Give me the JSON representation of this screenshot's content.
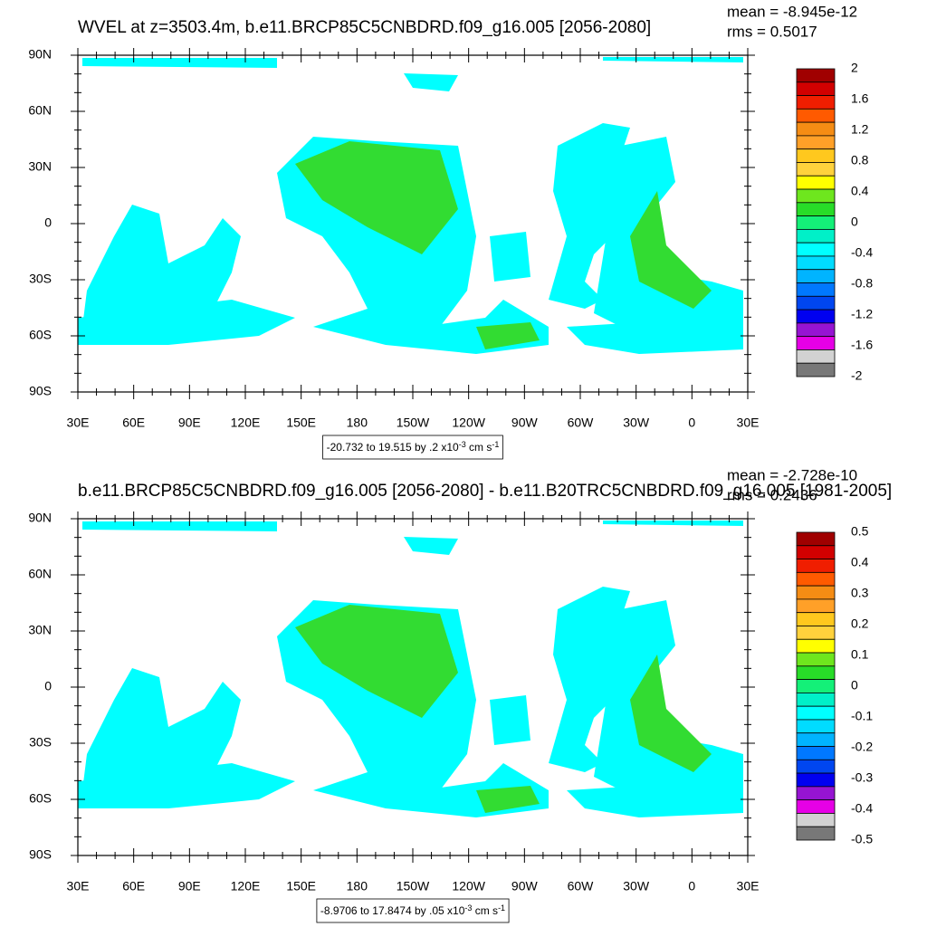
{
  "panels": [
    {
      "title": "WVEL at z=3503.4m, b.e11.BRCP85C5CNBDRD.f09_g16.005 [2056-2080]",
      "stats": [
        "mean = -8.945e-12",
        "rms = 0.5017"
      ],
      "lat_labels": [
        "90N",
        "60N",
        "30N",
        "0",
        "30S",
        "60S",
        "90S"
      ],
      "lon_labels": [
        "30E",
        "60E",
        "90E",
        "120E",
        "150E",
        "180",
        "150W",
        "120W",
        "90W",
        "60W",
        "30W",
        "0",
        "30E"
      ],
      "colorbar": {
        "labels": [
          "2",
          "1.6",
          "1.2",
          "0.8",
          "0.4",
          "0",
          "-0.4",
          "-0.8",
          "-1.2",
          "-1.6",
          "-2"
        ],
        "colors": [
          "#a00000",
          "#d20000",
          "#f01e00",
          "#ff5a00",
          "#f58c14",
          "#ffa028",
          "#ffc81e",
          "#ffd23c",
          "#ffff00",
          "#6ee61e",
          "#28dc28",
          "#14f078",
          "#00f0c8",
          "#00ffff",
          "#00dcff",
          "#00b4ff",
          "#0078ff",
          "#0046f0",
          "#0000f0",
          "#9614d2",
          "#e600e6",
          "#d2d2d2",
          "#787878"
        ]
      },
      "info": {
        "text": "-20.732 to 19.515 by .2 x10",
        "exp": "-3",
        "unit": " cm s",
        "unit_exp": "-1"
      }
    },
    {
      "title": "b.e11.BRCP85C5CNBDRD.f09_g16.005 [2056-2080] - b.e11.B20TRC5CNBDRD.f09_g16.005 [1981-2005]",
      "stats": [
        "mean = -2.728e-10",
        "rms = 0.2436"
      ],
      "lat_labels": [
        "90N",
        "60N",
        "30N",
        "0",
        "30S",
        "60S",
        "90S"
      ],
      "lon_labels": [
        "30E",
        "60E",
        "90E",
        "120E",
        "150E",
        "180",
        "150W",
        "120W",
        "90W",
        "60W",
        "30W",
        "0",
        "30E"
      ],
      "colorbar": {
        "labels": [
          "0.5",
          "0.4",
          "0.3",
          "0.2",
          "0.1",
          "0",
          "-0.1",
          "-0.2",
          "-0.3",
          "-0.4",
          "-0.5"
        ],
        "colors": [
          "#a00000",
          "#d20000",
          "#f01e00",
          "#ff5a00",
          "#f58c14",
          "#ffa028",
          "#ffc81e",
          "#ffd23c",
          "#ffff00",
          "#6ee61e",
          "#28dc28",
          "#14f078",
          "#00f0c8",
          "#00ffff",
          "#00dcff",
          "#00b4ff",
          "#0078ff",
          "#0046f0",
          "#0000f0",
          "#9614d2",
          "#e600e6",
          "#d2d2d2",
          "#787878"
        ]
      },
      "info": {
        "text": "-8.9706 to 17.8474 by .05 x10",
        "exp": "-3",
        "unit": " cm s",
        "unit_exp": "-1"
      }
    }
  ]
}
